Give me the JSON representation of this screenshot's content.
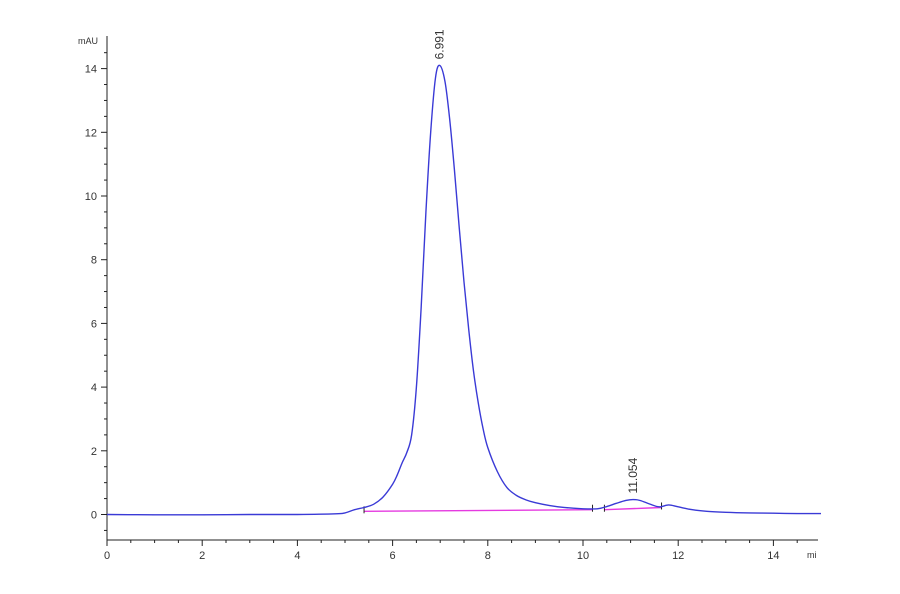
{
  "chart_data": {
    "type": "line",
    "title": "",
    "ylabel": "mAU",
    "xlabel": "mi",
    "xlim": [
      0,
      15
    ],
    "ylim": [
      -0.8,
      15
    ],
    "x_ticks": [
      "0",
      "2",
      "4",
      "6",
      "8",
      "10",
      "12",
      "14"
    ],
    "y_ticks": [
      "0",
      "2",
      "4",
      "6",
      "8",
      "10",
      "12",
      "14"
    ],
    "grid": false,
    "colors": {
      "signal": "#3a3ad6",
      "baseline": "#e53ae0",
      "axis": "#222222"
    },
    "signal": {
      "x": [
        0,
        1,
        2,
        3,
        4,
        4.8,
        5.0,
        5.2,
        5.4,
        5.6,
        5.8,
        6.0,
        6.1,
        6.2,
        6.3,
        6.4,
        6.5,
        6.6,
        6.7,
        6.8,
        6.9,
        6.99,
        7.1,
        7.2,
        7.3,
        7.4,
        7.5,
        7.6,
        7.7,
        7.8,
        7.9,
        8.0,
        8.2,
        8.4,
        8.6,
        8.8,
        9.0,
        9.3,
        9.6,
        10.0,
        10.3,
        10.5,
        10.7,
        10.9,
        11.05,
        11.2,
        11.4,
        11.6,
        11.8,
        12.0,
        12.3,
        12.6,
        13.0,
        13.5,
        14.0,
        14.5,
        15.0
      ],
      "y": [
        0.0,
        -0.01,
        -0.01,
        0.0,
        0.0,
        0.02,
        0.05,
        0.15,
        0.22,
        0.32,
        0.55,
        0.95,
        1.25,
        1.62,
        1.95,
        2.5,
        4.0,
        6.5,
        9.5,
        12.0,
        13.7,
        14.1,
        13.6,
        12.4,
        10.8,
        9.0,
        7.3,
        5.8,
        4.5,
        3.5,
        2.7,
        2.1,
        1.35,
        0.85,
        0.6,
        0.46,
        0.37,
        0.28,
        0.22,
        0.18,
        0.18,
        0.25,
        0.35,
        0.44,
        0.47,
        0.44,
        0.33,
        0.24,
        0.3,
        0.24,
        0.15,
        0.1,
        0.07,
        0.05,
        0.04,
        0.03,
        0.03
      ]
    },
    "baselines": [
      {
        "x": [
          5.4,
          10.2
        ],
        "y": [
          0.1,
          0.15
        ]
      },
      {
        "x": [
          10.45,
          11.65
        ],
        "y": [
          0.15,
          0.22
        ]
      }
    ],
    "peaks": [
      {
        "label": "6.991",
        "x": 6.99,
        "y": 14.1
      },
      {
        "label": "11.054",
        "x": 11.05,
        "y": 0.47
      }
    ]
  }
}
